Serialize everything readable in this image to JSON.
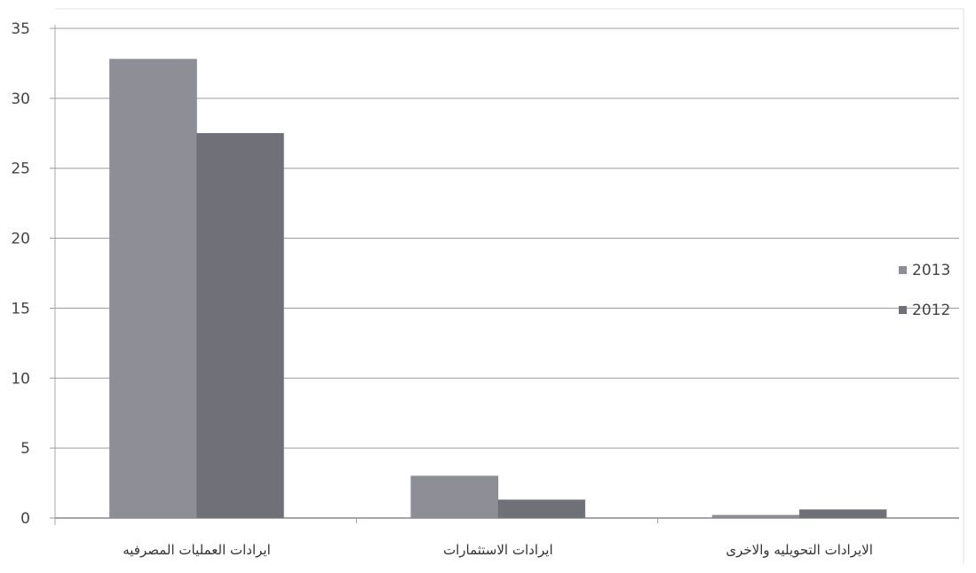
{
  "chart_data": {
    "type": "bar",
    "categories": [
      "ايرادات العمليات المصرفيه",
      "ايرادات الاستثمارات",
      "الايرادات التحويليه والاخرى"
    ],
    "series": [
      {
        "name": "2013",
        "values": [
          32.8,
          3.0,
          0.2
        ],
        "color": "#8e8f96"
      },
      {
        "name": "2012",
        "values": [
          27.5,
          1.3,
          0.6
        ],
        "color": "#6f7078"
      }
    ],
    "ylim": [
      0,
      35
    ],
    "yticks": [
      "0",
      "5",
      "10",
      "15",
      "20",
      "25",
      "30",
      "35"
    ],
    "grid": true,
    "legend": "right",
    "title": "",
    "xlabel": "",
    "ylabel": ""
  }
}
